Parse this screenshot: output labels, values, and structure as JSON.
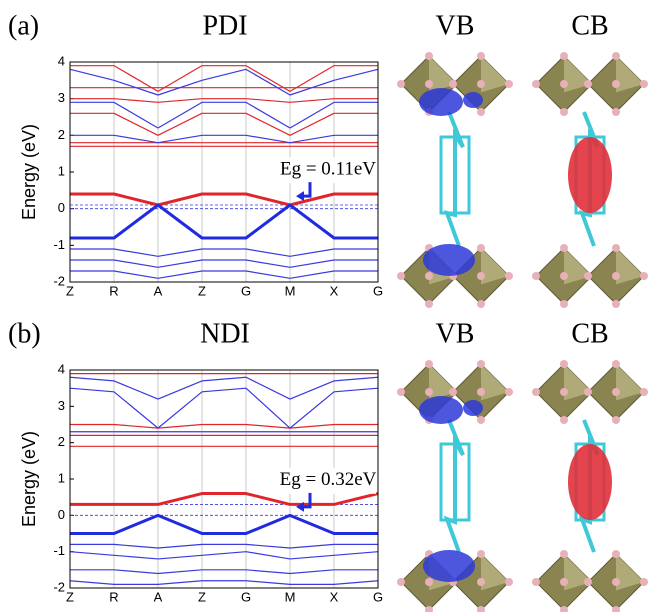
{
  "chart_data": [
    {
      "type": "line",
      "panel_label": "(a)",
      "title": "PDI",
      "structure_labels": [
        "VB",
        "CB"
      ],
      "ylabel": "Energy (eV)",
      "annotation": "Eg = 0.11eV",
      "categories": [
        "Z",
        "R",
        "A",
        "Z",
        "G",
        "M",
        "X",
        "G"
      ],
      "ylim": [
        -2,
        4
      ],
      "yticks": [
        -2,
        -1,
        0,
        1,
        2,
        3,
        4
      ],
      "grid": true,
      "hlines": [
        0.1,
        0
      ],
      "series": [
        {
          "color": "#e0262b",
          "bold": true,
          "values": [
            0.4,
            0.4,
            0.1,
            0.4,
            0.4,
            0.1,
            0.4,
            0.4
          ]
        },
        {
          "color": "#1f2be0",
          "bold": true,
          "values": [
            -0.8,
            -0.8,
            0.1,
            -0.8,
            -0.8,
            0.1,
            -0.8,
            -0.8
          ]
        },
        {
          "color": "#3a3ae0",
          "values": [
            -1.1,
            -1.1,
            -1.3,
            -1.1,
            -1.1,
            -1.3,
            -1.1,
            -1.1
          ]
        },
        {
          "color": "#3a3ae0",
          "values": [
            -1.4,
            -1.4,
            -1.6,
            -1.4,
            -1.4,
            -1.6,
            -1.4,
            -1.4
          ]
        },
        {
          "color": "#3a3ae0",
          "values": [
            -1.7,
            -1.7,
            -1.9,
            -1.7,
            -1.7,
            -1.9,
            -1.7,
            -1.7
          ]
        },
        {
          "color": "#e0262b",
          "values": [
            1.7,
            1.7,
            1.7,
            1.7,
            1.7,
            1.7,
            1.7,
            1.7
          ]
        },
        {
          "color": "#e0262b",
          "values": [
            1.8,
            1.8,
            1.8,
            1.8,
            1.8,
            1.8,
            1.8,
            1.8
          ]
        },
        {
          "color": "#3a3ae0",
          "values": [
            2.0,
            2.0,
            1.8,
            2.0,
            2.0,
            1.8,
            2.0,
            2.0
          ]
        },
        {
          "color": "#e0262b",
          "values": [
            2.6,
            2.6,
            2.0,
            2.6,
            2.6,
            2.0,
            2.6,
            2.6
          ]
        },
        {
          "color": "#3a3ae0",
          "values": [
            2.9,
            2.9,
            2.2,
            2.9,
            2.9,
            2.2,
            2.9,
            2.9
          ]
        },
        {
          "color": "#e0262b",
          "values": [
            3.0,
            3.0,
            2.9,
            3.0,
            3.0,
            2.9,
            3.0,
            3.0
          ]
        },
        {
          "color": "#e0262b",
          "values": [
            3.3,
            3.3,
            3.3,
            3.3,
            3.3,
            3.3,
            3.3,
            3.3
          ]
        },
        {
          "color": "#3a3ae0",
          "values": [
            3.8,
            3.5,
            3.1,
            3.5,
            3.8,
            3.1,
            3.5,
            3.8
          ]
        },
        {
          "color": "#e0262b",
          "values": [
            3.9,
            3.9,
            3.2,
            3.9,
            3.9,
            3.2,
            3.9,
            3.9
          ]
        }
      ]
    },
    {
      "type": "line",
      "panel_label": "(b)",
      "title": "NDI",
      "structure_labels": [
        "VB",
        "CB"
      ],
      "ylabel": "Energy (eV)",
      "annotation": "Eg = 0.32eV",
      "categories": [
        "Z",
        "R",
        "A",
        "Z",
        "G",
        "M",
        "X",
        "G"
      ],
      "ylim": [
        -2,
        4
      ],
      "yticks": [
        -2,
        -1,
        0,
        1,
        2,
        3,
        4
      ],
      "grid": true,
      "hlines": [
        0.3,
        0
      ],
      "series": [
        {
          "color": "#e0262b",
          "bold": true,
          "values": [
            0.3,
            0.3,
            0.3,
            0.6,
            0.6,
            0.3,
            0.3,
            0.6
          ]
        },
        {
          "color": "#1f2be0",
          "bold": true,
          "values": [
            -0.5,
            -0.5,
            0,
            -0.5,
            -0.5,
            0,
            -0.5,
            -0.5
          ]
        },
        {
          "color": "#3a3ae0",
          "values": [
            -0.8,
            -0.8,
            -0.9,
            -0.8,
            -0.8,
            -0.9,
            -0.8,
            -0.8
          ]
        },
        {
          "color": "#3a3ae0",
          "values": [
            -1.0,
            -1.1,
            -1.2,
            -1.1,
            -1.0,
            -1.2,
            -1.1,
            -1.0
          ]
        },
        {
          "color": "#3a3ae0",
          "values": [
            -1.5,
            -1.5,
            -1.6,
            -1.5,
            -1.5,
            -1.6,
            -1.5,
            -1.5
          ]
        },
        {
          "color": "#3a3ae0",
          "values": [
            -1.8,
            -1.9,
            -1.9,
            -1.8,
            -1.8,
            -1.9,
            -1.9,
            -1.8
          ]
        },
        {
          "color": "#e0262b",
          "values": [
            1.9,
            1.9,
            1.9,
            1.9,
            1.9,
            1.9,
            1.9,
            1.9
          ]
        },
        {
          "color": "#e0262b",
          "values": [
            2.2,
            2.2,
            2.2,
            2.2,
            2.2,
            2.2,
            2.2,
            2.2
          ]
        },
        {
          "color": "#3a3ae0",
          "values": [
            2.3,
            2.3,
            2.3,
            2.3,
            2.3,
            2.3,
            2.3,
            2.3
          ]
        },
        {
          "color": "#e0262b",
          "values": [
            2.5,
            2.5,
            2.4,
            2.5,
            2.5,
            2.4,
            2.5,
            2.5
          ]
        },
        {
          "color": "#3a3ae0",
          "values": [
            3.5,
            3.4,
            2.4,
            3.4,
            3.5,
            2.4,
            3.4,
            3.5
          ]
        },
        {
          "color": "#3a3ae0",
          "values": [
            3.8,
            3.7,
            3.2,
            3.7,
            3.8,
            3.2,
            3.7,
            3.8
          ]
        },
        {
          "color": "#e0262b",
          "values": [
            3.9,
            3.9,
            3.9,
            3.9,
            3.9,
            3.9,
            3.9,
            3.9
          ]
        }
      ]
    }
  ]
}
